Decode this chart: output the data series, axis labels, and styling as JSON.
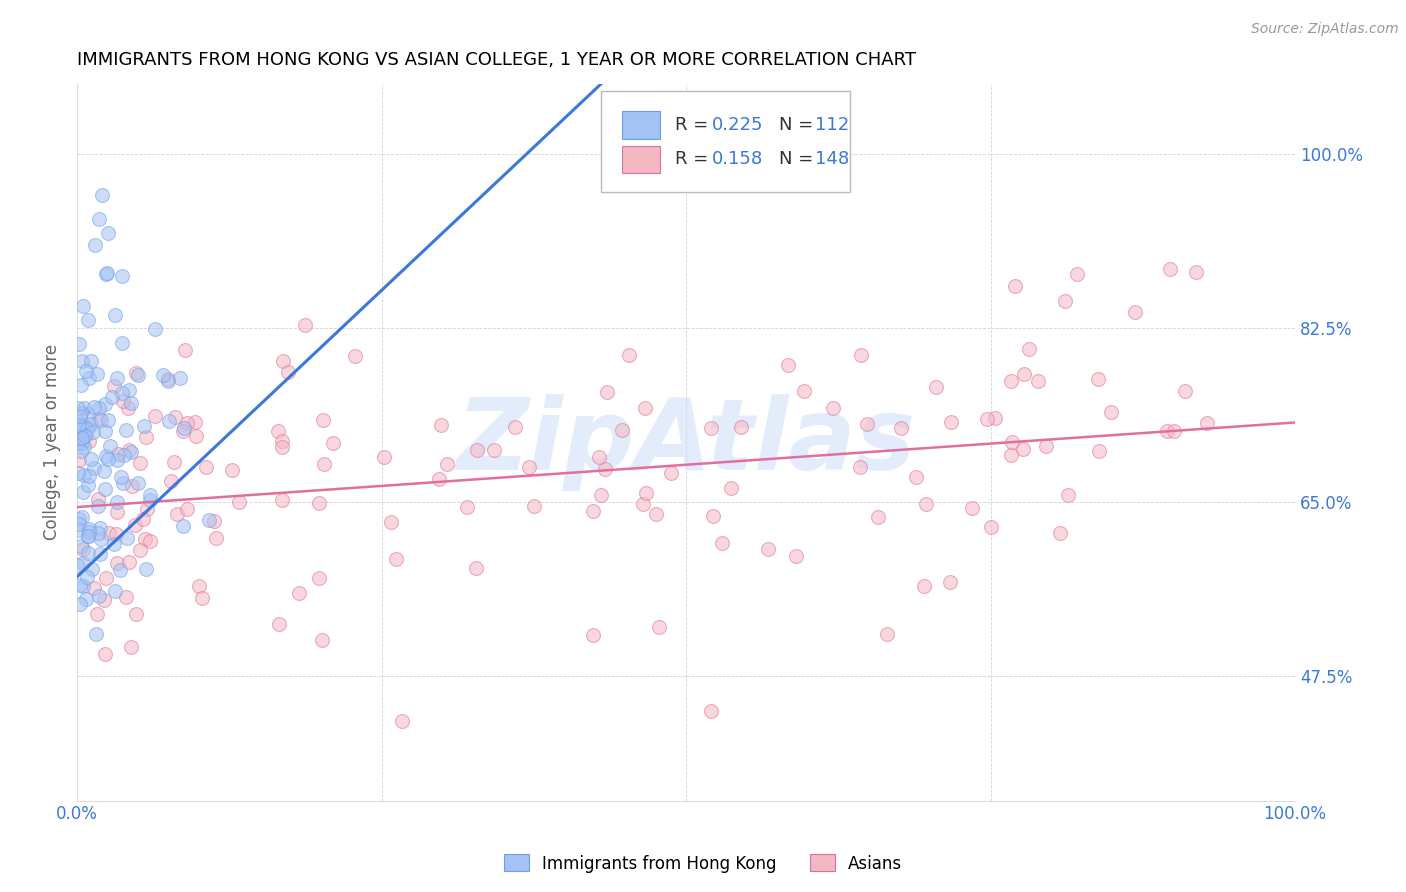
{
  "title": "IMMIGRANTS FROM HONG KONG VS ASIAN COLLEGE, 1 YEAR OR MORE CORRELATION CHART",
  "source": "Source: ZipAtlas.com",
  "ylabel": "College, 1 year or more",
  "xlim": [
    0.0,
    1.0
  ],
  "ylim": [
    0.35,
    1.07
  ],
  "xtick_positions": [
    0.0,
    0.25,
    0.5,
    0.75,
    1.0
  ],
  "xticklabels": [
    "0.0%",
    "",
    "",
    "",
    "100.0%"
  ],
  "ytick_positions": [
    0.475,
    0.65,
    0.825,
    1.0
  ],
  "ytick_labels": [
    "47.5%",
    "65.0%",
    "82.5%",
    "100.0%"
  ],
  "color_blue_face": "#a4c2f4",
  "color_blue_edge": "#6d9eeb",
  "color_pink_face": "#f4b8c1",
  "color_pink_edge": "#e06fa0",
  "line_blue": "#3c78d8",
  "line_pink": "#cc4125",
  "watermark_text": "ZipAtlas",
  "watermark_color": "#c9daf8",
  "N_blue": 112,
  "N_pink": 148,
  "R_blue": 0.225,
  "R_pink": 0.158,
  "marker_size": 100,
  "alpha_scatter": 0.55,
  "grid_color": "#c0c0c0",
  "bg_color": "#ffffff",
  "title_color": "#000000",
  "axis_label_color": "#666666",
  "tick_label_color": "#3c78d8",
  "source_color": "#999999",
  "legend_text_color": "#3c78d8",
  "blue_line_x0": 0.0,
  "blue_line_y0": 0.575,
  "blue_line_x1": 0.43,
  "blue_line_y1": 1.07,
  "pink_line_x0": 0.0,
  "pink_line_y0": 0.645,
  "pink_line_x1": 1.0,
  "pink_line_y1": 0.73
}
